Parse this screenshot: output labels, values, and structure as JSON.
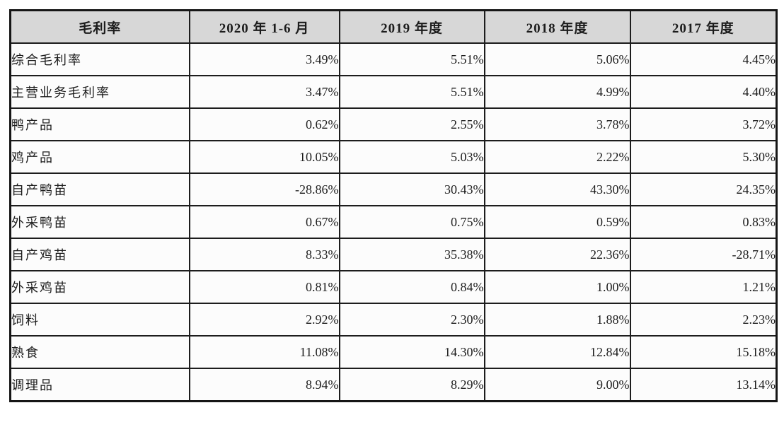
{
  "table": {
    "title": "毛利率",
    "columns": [
      "毛利率",
      "2020 年 1-6 月",
      "2019 年度",
      "2018 年度",
      "2017 年度"
    ],
    "rows": [
      {
        "label": "综合毛利率",
        "values": [
          "3.49%",
          "5.51%",
          "5.06%",
          "4.45%"
        ]
      },
      {
        "label": "主营业务毛利率",
        "values": [
          "3.47%",
          "5.51%",
          "4.99%",
          "4.40%"
        ]
      },
      {
        "label": "鸭产品",
        "values": [
          "0.62%",
          "2.55%",
          "3.78%",
          "3.72%"
        ]
      },
      {
        "label": "鸡产品",
        "values": [
          "10.05%",
          "5.03%",
          "2.22%",
          "5.30%"
        ]
      },
      {
        "label": "自产鸭苗",
        "values": [
          "-28.86%",
          "30.43%",
          "43.30%",
          "24.35%"
        ]
      },
      {
        "label": "外采鸭苗",
        "values": [
          "0.67%",
          "0.75%",
          "0.59%",
          "0.83%"
        ]
      },
      {
        "label": "自产鸡苗",
        "values": [
          "8.33%",
          "35.38%",
          "22.36%",
          "-28.71%"
        ]
      },
      {
        "label": "外采鸡苗",
        "values": [
          "0.81%",
          "0.84%",
          "1.00%",
          "1.21%"
        ]
      },
      {
        "label": "饲料",
        "values": [
          "2.92%",
          "2.30%",
          "1.88%",
          "2.23%"
        ]
      },
      {
        "label": "熟食",
        "values": [
          "11.08%",
          "14.30%",
          "12.84%",
          "15.18%"
        ]
      },
      {
        "label": "调理品",
        "values": [
          "8.94%",
          "8.29%",
          "9.00%",
          "13.14%"
        ]
      }
    ],
    "colors": {
      "header_bg": "#d7d7d7",
      "cell_bg": "#fcfcfc",
      "border": "#1d1d1d",
      "text": "#1c1c1c"
    }
  }
}
